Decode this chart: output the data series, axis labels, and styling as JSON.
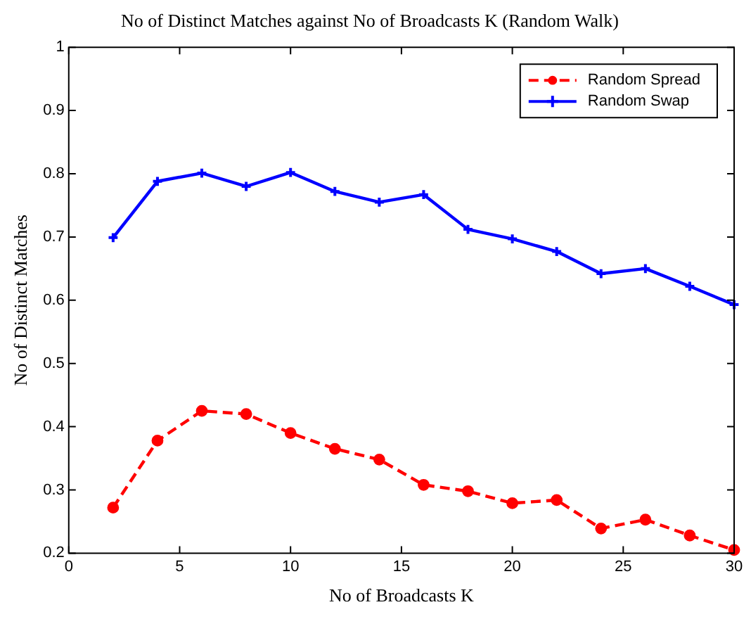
{
  "chart_data": {
    "type": "line",
    "title": "No of Distinct Matches against No of Broadcasts K (Random Walk)",
    "xlabel": "No of Broadcasts K",
    "ylabel": "No of Distinct Matches",
    "x": [
      2,
      4,
      6,
      8,
      10,
      12,
      14,
      16,
      18,
      20,
      22,
      24,
      26,
      28,
      30
    ],
    "series": [
      {
        "name": "Random Spread",
        "color": "#ff0000",
        "marker": "circle",
        "line_style": "dashed",
        "values": [
          0.272,
          0.378,
          0.425,
          0.42,
          0.39,
          0.365,
          0.348,
          0.308,
          0.298,
          0.279,
          0.284,
          0.239,
          0.253,
          0.228,
          0.205
        ]
      },
      {
        "name": "Random Swap",
        "color": "#0000ff",
        "marker": "cross",
        "line_style": "solid",
        "values": [
          0.699,
          0.788,
          0.801,
          0.78,
          0.802,
          0.772,
          0.755,
          0.767,
          0.712,
          0.697,
          0.677,
          0.642,
          0.65,
          0.622,
          0.593
        ]
      }
    ],
    "xlim": [
      0,
      30
    ],
    "xticks": [
      0,
      5,
      10,
      15,
      20,
      25,
      30
    ],
    "ylim": [
      0.2,
      1
    ],
    "yticks": [
      0.2,
      0.3,
      0.4,
      0.5,
      0.6,
      0.7,
      0.8,
      0.9,
      1
    ],
    "grid": false,
    "legend": "top right"
  }
}
